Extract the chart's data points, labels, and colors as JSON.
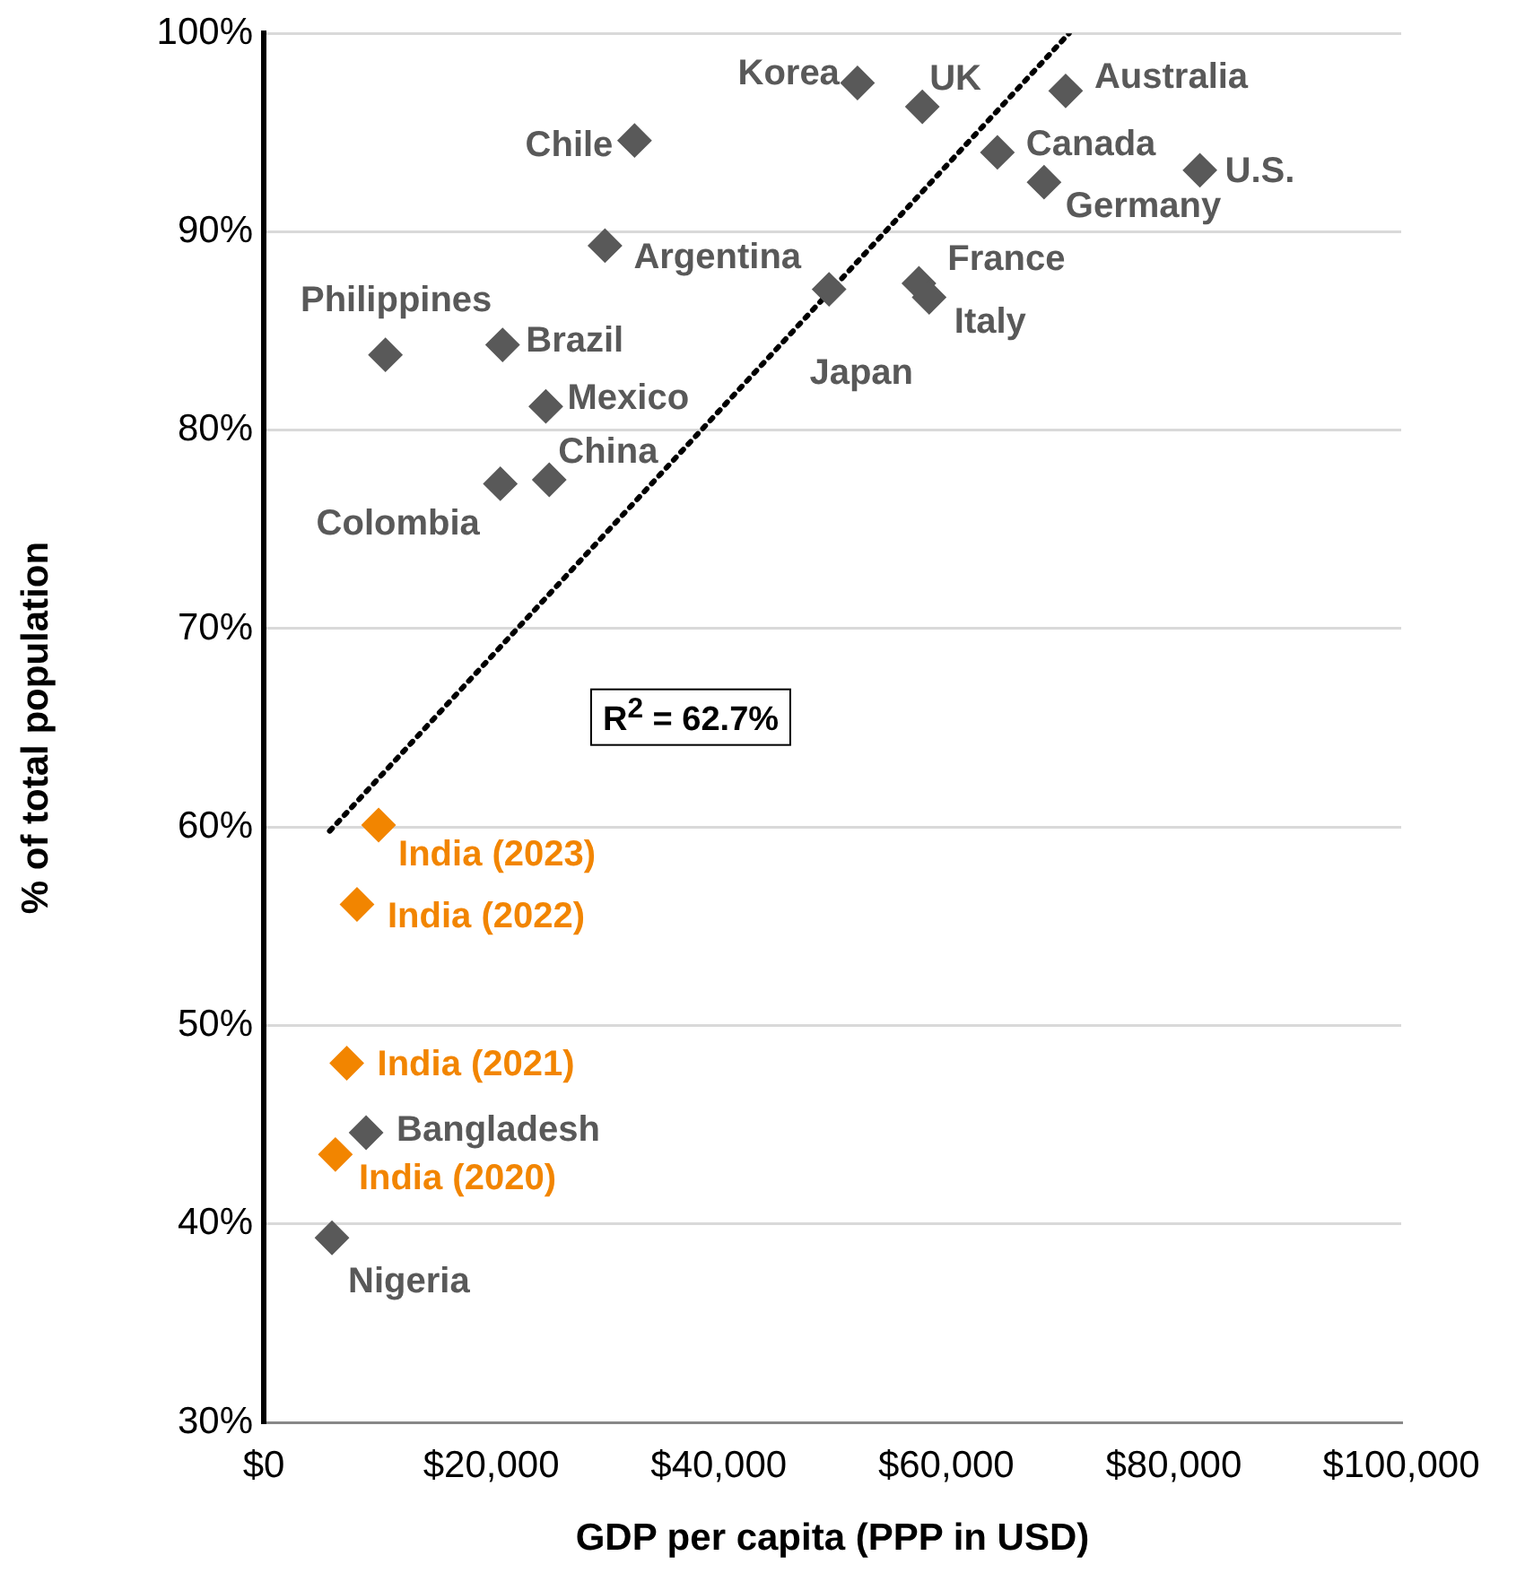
{
  "chart_data": {
    "type": "scatter",
    "xlabel": "GDP per capita (PPP in USD)",
    "ylabel": "% of total population",
    "xlim": [
      0,
      100000
    ],
    "xticks": [
      {
        "value": 0,
        "label": "$0"
      },
      {
        "value": 20000,
        "label": "$20,000"
      },
      {
        "value": 40000,
        "label": "$40,000"
      },
      {
        "value": 60000,
        "label": "$60,000"
      },
      {
        "value": 80000,
        "label": "$80,000"
      },
      {
        "value": 100000,
        "label": "$100,000"
      }
    ],
    "ylim": [
      30,
      100
    ],
    "yticks": [
      {
        "value": 30,
        "label": "30%"
      },
      {
        "value": 40,
        "label": "40%"
      },
      {
        "value": 50,
        "label": "50%"
      },
      {
        "value": 60,
        "label": "60%"
      },
      {
        "value": 70,
        "label": "70%"
      },
      {
        "value": 80,
        "label": "80%"
      },
      {
        "value": 90,
        "label": "90%"
      },
      {
        "value": 100,
        "label": "100%"
      }
    ],
    "grid": "y",
    "marker": "diamond",
    "series": [
      {
        "color": "#595959",
        "x": [
          52200,
          57900,
          70500,
          32600,
          64500,
          68600,
          82300,
          30000,
          49700,
          57600,
          58500,
          10700,
          21000,
          24800,
          20800,
          25100,
          9000,
          6000
        ],
        "values": [
          97.5,
          96.3,
          97.1,
          94.6,
          94.0,
          92.5,
          93.1,
          89.3,
          87.1,
          87.4,
          86.7,
          83.8,
          84.3,
          81.2,
          77.3,
          77.5,
          44.6,
          39.3
        ]
      },
      {
        "color": "#f28500",
        "x": [
          10100,
          8200,
          7300,
          6300
        ],
        "values": [
          60.1,
          56.1,
          48.1,
          43.5
        ]
      },
      {
        "type": "line",
        "color": "#000000",
        "line_style": "dotted",
        "marker": "none",
        "x": [
          5800,
          70800
        ],
        "values": [
          59.8,
          100
        ]
      }
    ],
    "annotations": [
      {
        "text": "Korea",
        "x": 52200,
        "y": 97.5
      },
      {
        "text": "UK",
        "x": 57900,
        "y": 96.3
      },
      {
        "text": "Australia",
        "x": 70500,
        "y": 97.1
      },
      {
        "text": "Chile",
        "x": 32600,
        "y": 94.6
      },
      {
        "text": "Canada",
        "x": 64500,
        "y": 94.0
      },
      {
        "text": "Germany",
        "x": 68600,
        "y": 92.5
      },
      {
        "text": "U.S.",
        "x": 82300,
        "y": 93.1
      },
      {
        "text": "Argentina",
        "x": 30000,
        "y": 89.3
      },
      {
        "text": "Japan",
        "x": 49700,
        "y": 87.1
      },
      {
        "text": "France",
        "x": 57600,
        "y": 87.4
      },
      {
        "text": "Italy",
        "x": 58500,
        "y": 86.7
      },
      {
        "text": "Philippines",
        "x": 10700,
        "y": 83.8
      },
      {
        "text": "Brazil",
        "x": 21000,
        "y": 84.3
      },
      {
        "text": "Mexico",
        "x": 24800,
        "y": 81.2
      },
      {
        "text": "Colombia",
        "x": 20800,
        "y": 77.3
      },
      {
        "text": "China",
        "x": 25100,
        "y": 77.5
      },
      {
        "text": "Bangladesh",
        "x": 9000,
        "y": 44.6
      },
      {
        "text": "Nigeria",
        "x": 6000,
        "y": 39.3
      },
      {
        "text": "India (2023)",
        "x": 10100,
        "y": 60.1
      },
      {
        "text": "India (2022)",
        "x": 8200,
        "y": 56.1
      },
      {
        "text": "India (2021)",
        "x": 7300,
        "y": 48.1
      },
      {
        "text": "India (2020)",
        "x": 6300,
        "y": 43.5
      },
      "R$^{2}$ = 62.7%"
    ]
  }
}
